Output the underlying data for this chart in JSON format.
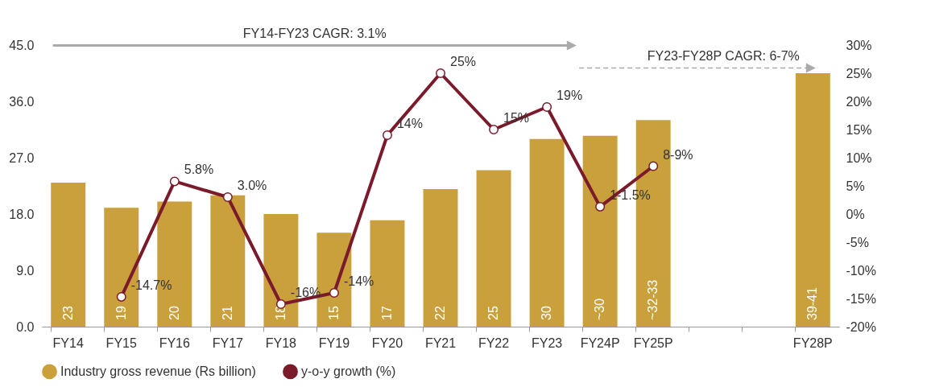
{
  "chart_data": {
    "type": "bar",
    "categories": [
      "FY14",
      "FY15",
      "FY16",
      "FY17",
      "FY18",
      "FY19",
      "FY20",
      "FY21",
      "FY22",
      "FY23",
      "FY24P",
      "FY25P",
      null,
      null,
      "FY28P"
    ],
    "series": [
      {
        "name": "Industry gross revenue (Rs billion)",
        "color": "#c9a03c",
        "values": [
          23,
          19,
          20,
          21,
          18,
          15,
          17,
          22,
          25,
          30,
          30.5,
          33,
          null,
          null,
          40.5
        ],
        "value_labels": [
          "23",
          "19",
          "20",
          "21",
          "18",
          "15",
          "17",
          "22",
          "25",
          "30",
          "~30",
          "~32-33",
          null,
          null,
          "39-41"
        ]
      },
      {
        "name": "y-o-y growth (%)",
        "type": "line",
        "axis": "y2",
        "color": "#7b1a2b",
        "marker": "circle",
        "values": [
          null,
          -14.7,
          5.8,
          3.0,
          -16,
          -14,
          14,
          25,
          15,
          19,
          1.3,
          8.5,
          null,
          null,
          null
        ],
        "value_labels": [
          null,
          "-14.7%",
          "5.8%",
          "3.0%",
          "-16%",
          "-14%",
          "14%",
          "25%",
          "15%",
          "19%",
          "1-1.5%",
          "8-9%",
          null,
          null,
          null
        ]
      }
    ],
    "ylim": [
      0,
      45
    ],
    "yticks": [
      {
        "value": 0,
        "label": "0.0"
      },
      {
        "value": 9,
        "label": "9.0"
      },
      {
        "value": 18,
        "label": "18.0"
      },
      {
        "value": 27,
        "label": "27.0"
      },
      {
        "value": 36,
        "label": "36.0"
      },
      {
        "value": 45,
        "label": "45.0"
      }
    ],
    "y2lim": [
      -20,
      30
    ],
    "y2ticks": [
      {
        "value": -20,
        "label": "-20%"
      },
      {
        "value": -15,
        "label": "-15%"
      },
      {
        "value": -10,
        "label": "-10%"
      },
      {
        "value": -5,
        "label": "-5%"
      },
      {
        "value": 0,
        "label": "0%"
      },
      {
        "value": 5,
        "label": "5%"
      },
      {
        "value": 10,
        "label": "10%"
      },
      {
        "value": 15,
        "label": "15%"
      },
      {
        "value": 20,
        "label": "20%"
      },
      {
        "value": 25,
        "label": "25%"
      },
      {
        "value": 30,
        "label": "30%"
      }
    ],
    "annotations": [
      "FY14-FY23 CAGR: 3.1%",
      "FY23-FY28P CAGR: 6-7%"
    ],
    "grid": false,
    "legend": "bottom"
  }
}
